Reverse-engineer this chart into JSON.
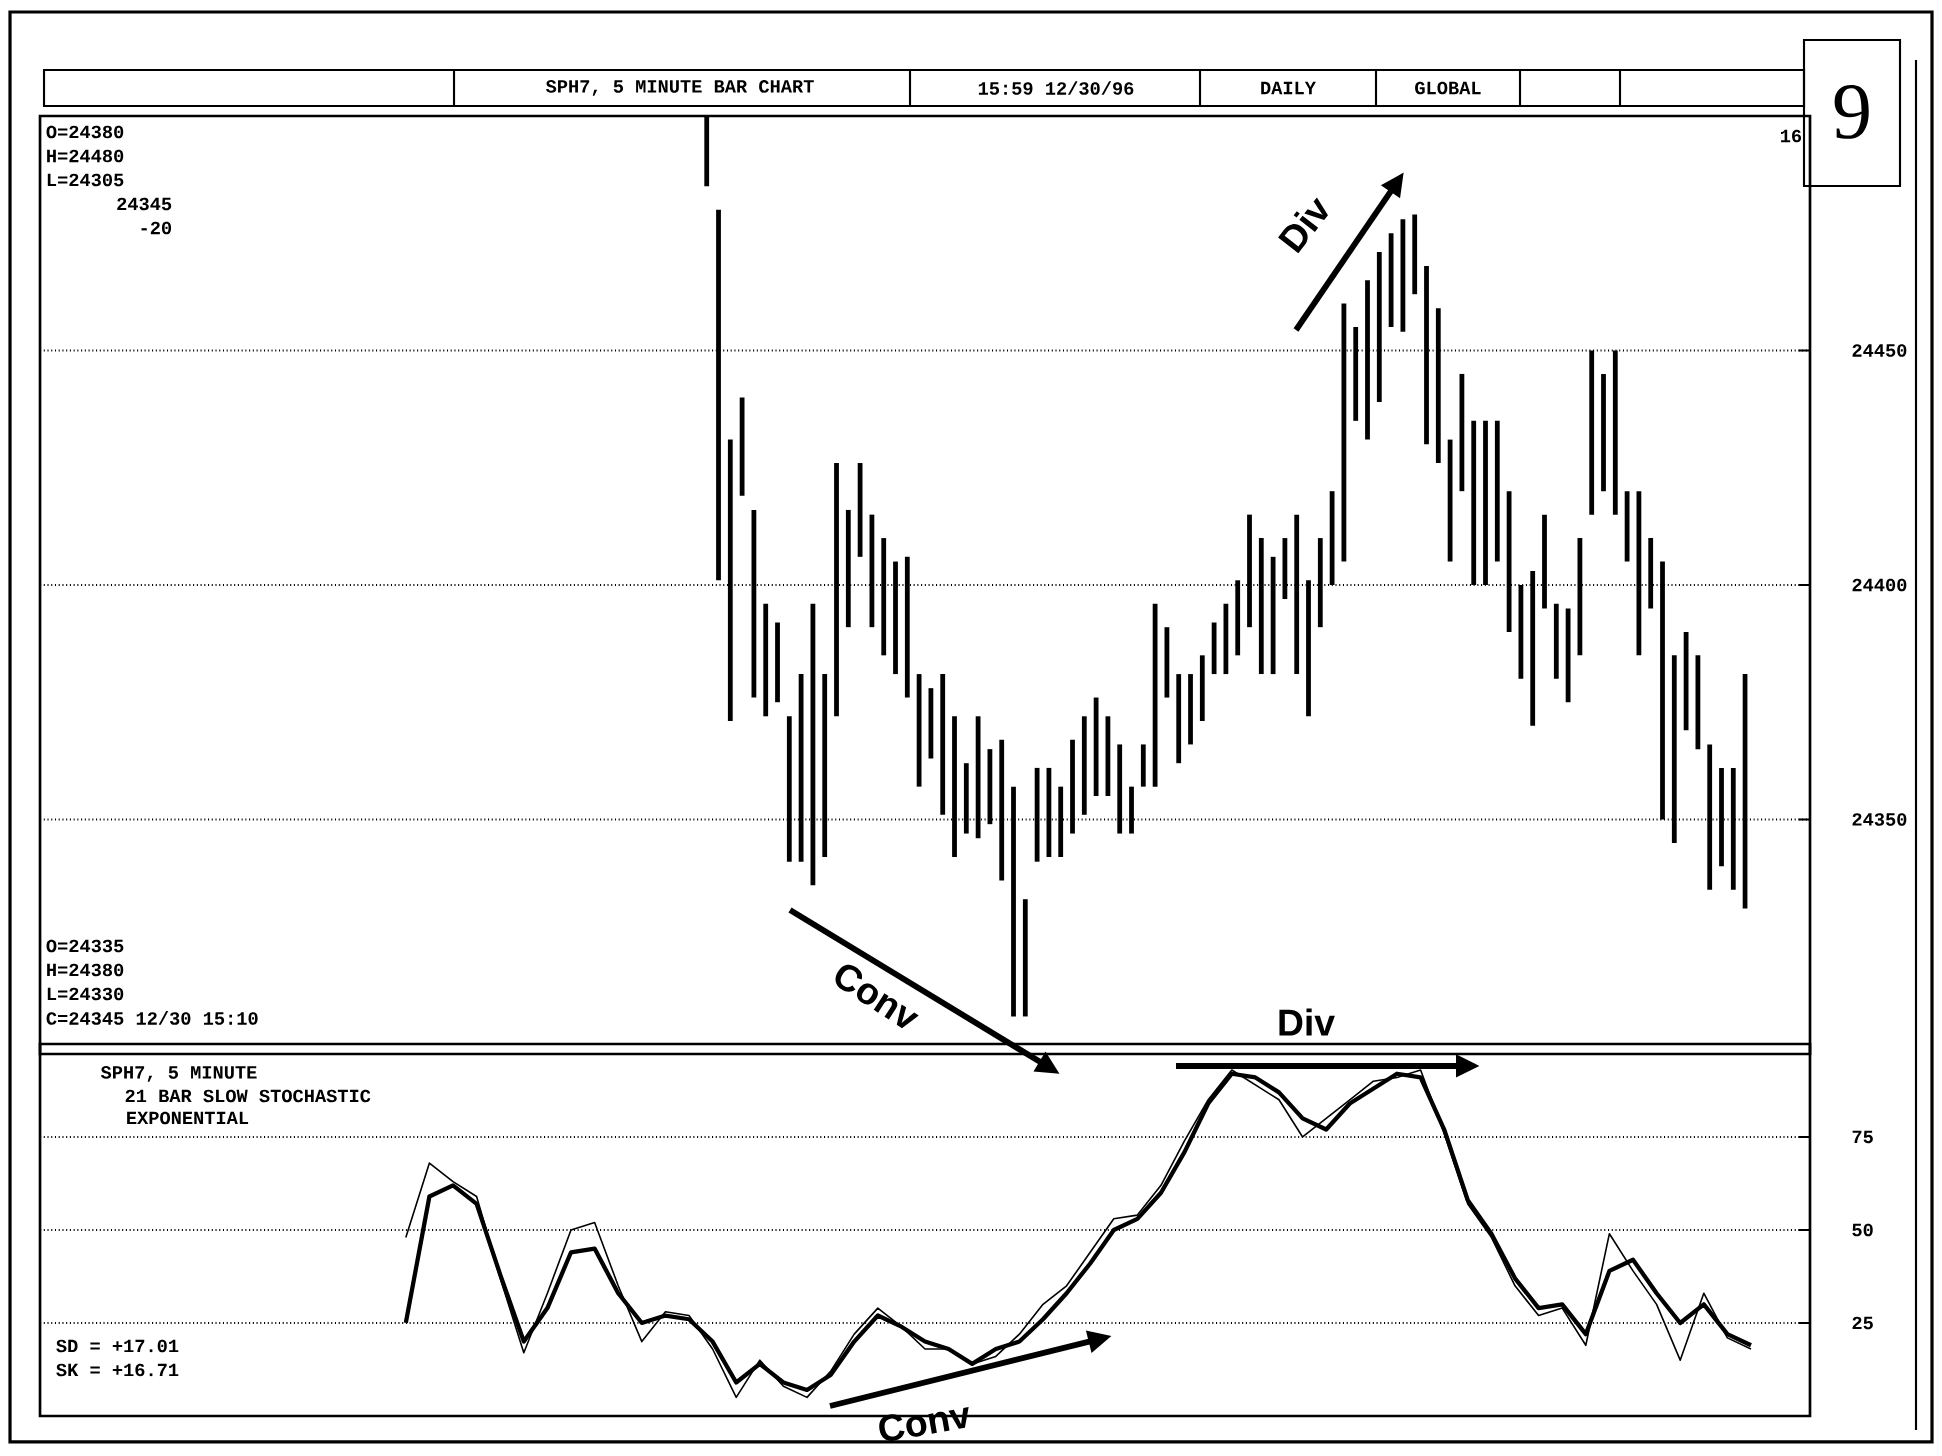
{
  "chart_data": [
    {
      "type": "bar",
      "title": "SPH7, 5 MINUTE BAR CHART",
      "annotations": [
        "15:59 12/30/96",
        "DAILY",
        "GLOBAL",
        "O=24380",
        "H=24480",
        "L=24305",
        "24345",
        "-20",
        "16",
        "O=24335",
        "H=24380",
        "L=24330",
        "C=24345 12/30 15:10",
        "9",
        "Div",
        "Conv"
      ],
      "categories": [
        null,
        null,
        null,
        null,
        null,
        null,
        null,
        null,
        null,
        null,
        null,
        null,
        null,
        null,
        null,
        null,
        null,
        null,
        null,
        null,
        null,
        null,
        null,
        null,
        null,
        null,
        null,
        null,
        null,
        null,
        null,
        null,
        null,
        null,
        null,
        null,
        null,
        null,
        null,
        null,
        null,
        null,
        null,
        null,
        null,
        null,
        null,
        null,
        null,
        null,
        null,
        null,
        null,
        null,
        null,
        null,
        null,
        null,
        null,
        null,
        null,
        null,
        null,
        null,
        null,
        null,
        null,
        null,
        null,
        null,
        null,
        null,
        null,
        null,
        null,
        null,
        null,
        null,
        null,
        null,
        null,
        null,
        null,
        null,
        null,
        null,
        null,
        null,
        null,
        null,
        null,
        null,
        null,
        null,
        null,
        null,
        null,
        null,
        null,
        null,
        null,
        null,
        null,
        null,
        null,
        null,
        null,
        null,
        null,
        null,
        null,
        null,
        null,
        null,
        null,
        null,
        null,
        null,
        null,
        null,
        null,
        null,
        null,
        null,
        null,
        null,
        null,
        null,
        null,
        null,
        null,
        null,
        null,
        null,
        null,
        null,
        null,
        null,
        null,
        null,
        null,
        null,
        null,
        null,
        null,
        null,
        null,
        null,
        null,
        null
      ],
      "base": [
        null,
        null,
        null,
        null,
        null,
        null,
        null,
        null,
        null,
        null,
        null,
        null,
        null,
        null,
        null,
        null,
        null,
        null,
        null,
        null,
        null,
        null,
        null,
        null,
        null,
        null,
        null,
        null,
        null,
        null,
        null,
        null,
        null,
        null,
        null,
        null,
        null,
        null,
        null,
        null,
        null,
        null,
        null,
        null,
        null,
        null,
        null,
        null,
        null,
        null,
        null,
        null,
        null,
        null,
        null,
        null,
        24485,
        24401,
        24371,
        24419,
        24376,
        24372,
        24375,
        24341,
        24341,
        24336,
        24342,
        24372,
        24391,
        24406,
        24391,
        24385,
        24381,
        24376,
        24357,
        24363,
        24351,
        24342,
        24347,
        24346,
        24349,
        24337,
        24308,
        24308,
        24341,
        24342,
        24342,
        24347,
        24351,
        24355,
        24355,
        24347,
        24347,
        24357,
        24357,
        24376,
        24362,
        24366,
        24371,
        24381,
        24381,
        24385,
        24391,
        24381,
        24381,
        24397,
        24381,
        24372,
        24391,
        24400,
        24405,
        24435,
        24431,
        24439,
        24455,
        24454,
        24462,
        24430,
        24426,
        24405,
        24420,
        24400,
        24400,
        24405,
        24390,
        24380,
        24370,
        24395,
        24380,
        24375,
        24385,
        24415,
        24420,
        24415,
        24405,
        24385,
        24395,
        24350,
        24345,
        24369,
        24365,
        24335,
        24340,
        24335,
        24331,
        null,
        null,
        null,
        null,
        null
      ],
      "values": [
        null,
        null,
        null,
        null,
        null,
        null,
        null,
        null,
        null,
        null,
        null,
        null,
        null,
        null,
        null,
        null,
        null,
        null,
        null,
        null,
        null,
        null,
        null,
        null,
        null,
        null,
        null,
        null,
        null,
        null,
        null,
        null,
        null,
        null,
        null,
        null,
        null,
        null,
        null,
        null,
        null,
        null,
        null,
        null,
        null,
        null,
        null,
        null,
        null,
        null,
        null,
        null,
        null,
        null,
        null,
        null,
        15,
        79,
        60,
        21,
        40,
        24,
        17,
        31,
        40,
        60,
        39,
        54,
        25,
        20,
        24,
        25,
        24,
        30,
        24,
        15,
        30,
        30,
        15,
        26,
        16,
        30,
        49,
        25,
        20,
        19,
        15,
        20,
        21,
        21,
        17,
        19,
        10,
        9,
        39,
        15,
        19,
        15,
        14,
        11,
        15,
        16,
        24,
        29,
        25,
        13,
        34,
        29,
        19,
        20,
        55,
        20,
        34,
        32,
        20,
        24,
        17,
        38,
        33,
        26,
        25,
        35,
        35,
        30,
        30,
        20,
        33,
        20,
        16,
        20,
        25,
        35,
        25,
        35,
        15,
        35,
        15,
        55,
        40,
        21,
        20,
        31,
        21,
        26,
        50,
        null,
        null,
        null,
        null,
        null
      ],
      "color": "#000000",
      "ylim": [
        24300,
        24500
      ],
      "yticks": [
        24350,
        24400,
        24450
      ],
      "grid": "y",
      "tick_labels": "y"
    },
    {
      "type": "line",
      "title": "SPH7, 5 MINUTE",
      "subtitle": "21 BAR SLOW STOCHASTIC",
      "annotations": [
        "EXPONENTIAL",
        "SD = +17.01",
        "SK = +16.71",
        "Div",
        "Conv"
      ],
      "categories": [
        null,
        null,
        null,
        null,
        null,
        null,
        null,
        null,
        null,
        null,
        null,
        null,
        null,
        null,
        null,
        null,
        null,
        null,
        null,
        null,
        null,
        null,
        null,
        null,
        null,
        null,
        null,
        null,
        null,
        null,
        null,
        null,
        null,
        null,
        null,
        null,
        null,
        null,
        null,
        null,
        null,
        null,
        null,
        null,
        null,
        null,
        null,
        null,
        null,
        null,
        null,
        null,
        null,
        null,
        null,
        null,
        null,
        null,
        null,
        null,
        null,
        null,
        null,
        null,
        null,
        null,
        null,
        null,
        null,
        null,
        null,
        null,
        null,
        null,
        null
      ],
      "series": [
        {
          "color": "#000000",
          "values": [
            null,
            null,
            null,
            null,
            null,
            null,
            null,
            null,
            null,
            null,
            null,
            null,
            null,
            null,
            null,
            25,
            59,
            62,
            57,
            38,
            20,
            29,
            44,
            45,
            33,
            25,
            27,
            26,
            20,
            9,
            14,
            9,
            7,
            11,
            20,
            27,
            24,
            20,
            18,
            14,
            18,
            20,
            26,
            33,
            41,
            50,
            53,
            60,
            71,
            84,
            92,
            91,
            87,
            80,
            77,
            84,
            88,
            92,
            91,
            77,
            58,
            49,
            37,
            29,
            30,
            22,
            39,
            42,
            33,
            25,
            30,
            22,
            19,
            null,
            null
          ]
        },
        {
          "color": "#000000",
          "values": [
            null,
            null,
            null,
            null,
            null,
            null,
            null,
            null,
            null,
            null,
            null,
            null,
            null,
            null,
            null,
            48,
            68,
            63,
            59,
            37,
            17,
            33,
            50,
            52,
            35,
            20,
            28,
            27,
            18,
            5,
            15,
            8,
            5,
            12,
            22,
            29,
            24,
            18,
            18,
            14,
            16,
            22,
            30,
            35,
            44,
            53,
            54,
            62,
            74,
            85,
            93,
            89,
            85,
            75,
            80,
            85,
            90,
            91,
            93,
            76,
            57,
            48,
            35,
            27,
            29,
            19,
            49,
            39,
            30,
            15,
            33,
            21,
            18,
            null,
            null
          ]
        }
      ],
      "ylim": [
        0,
        100
      ],
      "yticks": [
        25,
        50,
        75
      ],
      "grid": "y",
      "tick_labels": "y"
    }
  ]
}
